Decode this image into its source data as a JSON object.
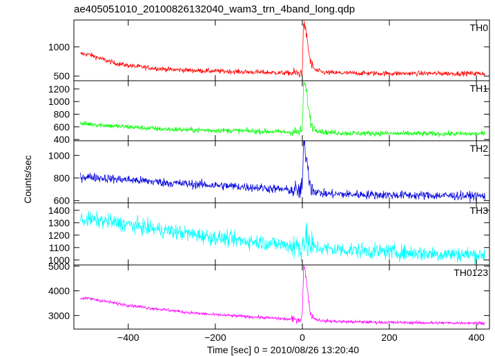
{
  "chart_data": {
    "type": "line",
    "title": "ae405051010_20100826132040_wam3_trn_4band_long.qdp",
    "xlabel": "Time [sec] 0 = 2010/08/26 13:20:40",
    "ylabel": "Counts/sec",
    "xlim": [
      -525,
      430
    ],
    "x_ticks": [
      -400,
      -200,
      0,
      200,
      400
    ],
    "panels": [
      {
        "name": "TH0",
        "color": "#ff0000",
        "ylim": [
          420,
          1460
        ],
        "y_ticks": [
          500,
          1000
        ],
        "x": [
          -510,
          -490,
          -460,
          -430,
          -400,
          -350,
          -300,
          -250,
          -200,
          -150,
          -100,
          -50,
          -20,
          -5,
          0,
          3,
          6,
          10,
          15,
          20,
          30,
          50,
          100,
          200,
          300,
          420
        ],
        "y": [
          880,
          870,
          790,
          720,
          680,
          640,
          610,
          595,
          585,
          575,
          565,
          555,
          550,
          545,
          600,
          1450,
          1300,
          1200,
          900,
          700,
          600,
          560,
          550,
          545,
          545,
          545
        ],
        "noise": 30
      },
      {
        "name": "TH1",
        "color": "#00ff00",
        "ylim": [
          380,
          1330
        ],
        "y_ticks": [
          400,
          600,
          800,
          1000,
          1200
        ],
        "x": [
          -510,
          -490,
          -460,
          -430,
          -400,
          -350,
          -300,
          -250,
          -200,
          -150,
          -100,
          -50,
          -20,
          -5,
          0,
          3,
          6,
          10,
          15,
          20,
          30,
          50,
          100,
          200,
          300,
          420
        ],
        "y": [
          650,
          645,
          630,
          610,
          600,
          575,
          560,
          550,
          545,
          540,
          530,
          520,
          515,
          515,
          560,
          1310,
          1250,
          1150,
          850,
          650,
          560,
          515,
          500,
          495,
          490,
          490
        ],
        "noise": 30
      },
      {
        "name": "TH2",
        "color": "#0000dd",
        "ylim": [
          580,
          1130
        ],
        "y_ticks": [
          600,
          800,
          1000
        ],
        "x": [
          -510,
          -490,
          -460,
          -430,
          -400,
          -350,
          -300,
          -250,
          -200,
          -150,
          -100,
          -50,
          -20,
          -5,
          0,
          3,
          6,
          10,
          15,
          20,
          30,
          50,
          100,
          200,
          300,
          420
        ],
        "y": [
          810,
          810,
          800,
          790,
          785,
          770,
          755,
          745,
          735,
          725,
          715,
          700,
          690,
          685,
          720,
          1120,
          1050,
          980,
          820,
          720,
          680,
          660,
          655,
          650,
          645,
          640
        ],
        "noise": 28
      },
      {
        "name": "TH3",
        "color": "#00ffff",
        "ylim": [
          960,
          1460
        ],
        "y_ticks": [
          1000,
          1100,
          1200,
          1300,
          1400
        ],
        "x": [
          -510,
          -490,
          -460,
          -430,
          -400,
          -350,
          -300,
          -250,
          -200,
          -150,
          -100,
          -50,
          -20,
          -5,
          0,
          3,
          6,
          10,
          20,
          50,
          100,
          200,
          300,
          420
        ],
        "y": [
          1320,
          1325,
          1315,
          1300,
          1285,
          1255,
          1230,
          1205,
          1180,
          1160,
          1145,
          1125,
          1115,
          1110,
          1130,
          1180,
          1160,
          1140,
          1110,
          1090,
          1080,
          1065,
          1050,
          1040
        ],
        "noise": 45
      },
      {
        "name": "TH0123",
        "color": "#ff00ff",
        "ylim": [
          2450,
          5050
        ],
        "y_ticks": [
          3000,
          4000,
          5000
        ],
        "x": [
          -510,
          -490,
          -460,
          -430,
          -400,
          -350,
          -300,
          -250,
          -200,
          -150,
          -100,
          -50,
          -20,
          -5,
          0,
          3,
          6,
          10,
          15,
          20,
          30,
          50,
          100,
          200,
          300,
          420
        ],
        "y": [
          3700,
          3690,
          3600,
          3500,
          3420,
          3300,
          3200,
          3100,
          3030,
          2980,
          2930,
          2870,
          2840,
          2830,
          3000,
          5000,
          4800,
          4400,
          3500,
          3000,
          2850,
          2780,
          2750,
          2720,
          2700,
          2700
        ],
        "noise": 45
      }
    ]
  }
}
